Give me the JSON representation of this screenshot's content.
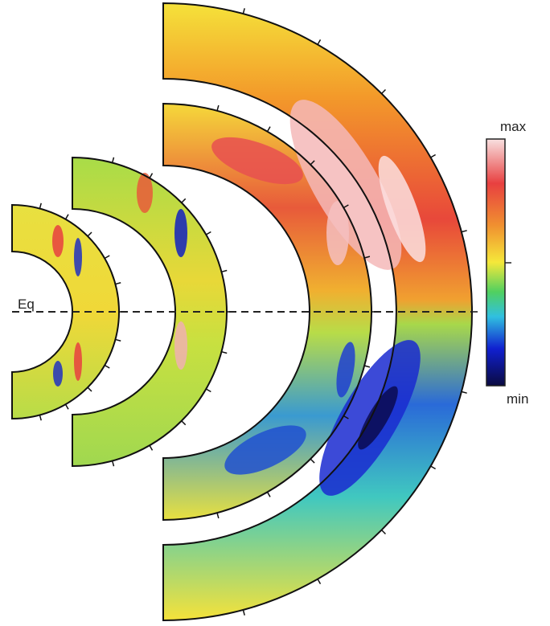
{
  "labels": {
    "equator": "Eq",
    "colorbar_max": "max",
    "colorbar_min": "min"
  }
}
